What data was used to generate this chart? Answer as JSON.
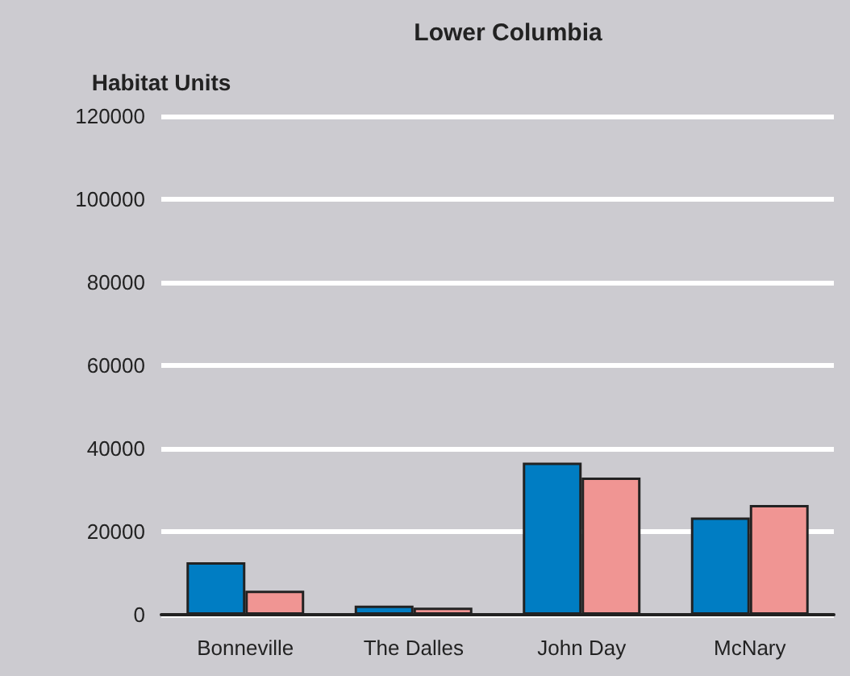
{
  "chart_data": {
    "type": "bar",
    "title": "Lower Columbia",
    "ylabel": "Habitat Units",
    "categories": [
      "Bonneville",
      "The Dalles",
      "John Day",
      "McNary"
    ],
    "series": [
      {
        "color": "#007dc3",
        "values": [
          12600,
          2200,
          36600,
          23400
        ]
      },
      {
        "color": "#f09593",
        "values": [
          5800,
          1700,
          33000,
          26400
        ]
      }
    ],
    "ylim": [
      0,
      120000
    ],
    "yticks": [
      0,
      20000,
      40000,
      60000,
      80000,
      100000,
      120000
    ],
    "grid": "y"
  }
}
